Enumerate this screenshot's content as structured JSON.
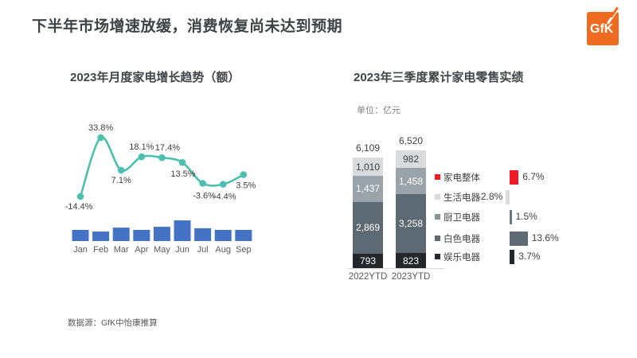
{
  "slide": {
    "title": "下半年市场增速放缓，消费恢复尚未达到预期",
    "logo_text": "GfK",
    "source": "数据源：GfK中怡康推算"
  },
  "colors": {
    "title_text": "#3e4347",
    "logo_orange": "#EF6B22",
    "teal_line": "#4CBFAF",
    "blue_bar": "#4472C4",
    "red_accent": "#EE1C25",
    "seg_light_gray": "#D9DBDC",
    "seg_mid_gray": "#9AA3AA",
    "seg_slate": "#5E6A73",
    "seg_black": "#23262A",
    "label_dark": "#404040",
    "label_gray": "#595959"
  },
  "chart_data": [
    {
      "type": "line",
      "title": "2023年月度家电增长趋势（额）",
      "categories": [
        "Jan",
        "Feb",
        "Mar",
        "Apr",
        "May",
        "Jun",
        "Jul",
        "Aug",
        "Sep"
      ],
      "series": [
        {
          "name": "monthly-growth-rate",
          "type": "line",
          "unit": "%",
          "values": [
            -14.4,
            33.8,
            7.1,
            18.1,
            17.4,
            13.5,
            -3.6,
            -4.4,
            3.5
          ],
          "labels": [
            "-14.4%",
            "33.8%",
            "7.1%",
            "18.1%",
            "17.4%",
            "13.5%",
            "-3.6%",
            "-4.4%",
            "3.5%"
          ]
        },
        {
          "name": "monthly-sales-volume-unlabeled",
          "type": "bar",
          "values_relative": [
            0.54,
            0.46,
            0.65,
            0.54,
            0.69,
            1.0,
            0.62,
            0.54,
            0.54
          ]
        }
      ],
      "grid": false,
      "legend": "none"
    },
    {
      "type": "bar",
      "subtype": "stacked",
      "title": "2023年三季度累计家电零售实绩",
      "unit_label": "单位：亿元",
      "categories": [
        "2022YTD",
        "2023YTD"
      ],
      "totals": [
        6109,
        6520
      ],
      "total_labels": [
        "6,109",
        "6,520"
      ],
      "segments_top_to_bottom": [
        {
          "name": "生活电器",
          "color": "#D9DBDC",
          "values": [
            1010,
            982
          ],
          "value_labels": [
            "1,010",
            "982"
          ],
          "text_color": "#3f3f3f"
        },
        {
          "name": "厨卫电器",
          "color": "#9AA3AA",
          "values": [
            1437,
            1458
          ],
          "value_labels": [
            "1,437",
            "1,458"
          ],
          "text_color": "#ffffff"
        },
        {
          "name": "白色电器",
          "color": "#5E6A73",
          "values": [
            2869,
            3258
          ],
          "value_labels": [
            "2,869",
            "3,258"
          ],
          "text_color": "#ffffff"
        },
        {
          "name": "娱乐电器",
          "color": "#23262A",
          "values": [
            793,
            823
          ],
          "value_labels": [
            "793",
            "823"
          ],
          "text_color": "#ffffff"
        }
      ],
      "growth_legend": [
        {
          "name": "家电整体",
          "marker_color": "#EE1C25",
          "bar_color": "#EE1C25",
          "growth_pct": 6.7,
          "growth_label": "6.7%"
        },
        {
          "name": "生活电器",
          "marker_color": "#D9DBDC",
          "bar_color": "#D9DBDC",
          "growth_pct": -2.8,
          "growth_label": "-2.8%"
        },
        {
          "name": "厨卫电器",
          "marker_color": "#8A949B",
          "bar_color": "#6B757C",
          "growth_pct": 1.5,
          "growth_label": "1.5%"
        },
        {
          "name": "白色电器",
          "marker_color": "#5E6A73",
          "bar_color": "#5E6A73",
          "growth_pct": 13.6,
          "growth_label": "13.6%"
        },
        {
          "name": "娱乐电器",
          "marker_color": "#23262A",
          "bar_color": "#23262A",
          "growth_pct": 3.7,
          "growth_label": "3.7%"
        }
      ]
    }
  ]
}
